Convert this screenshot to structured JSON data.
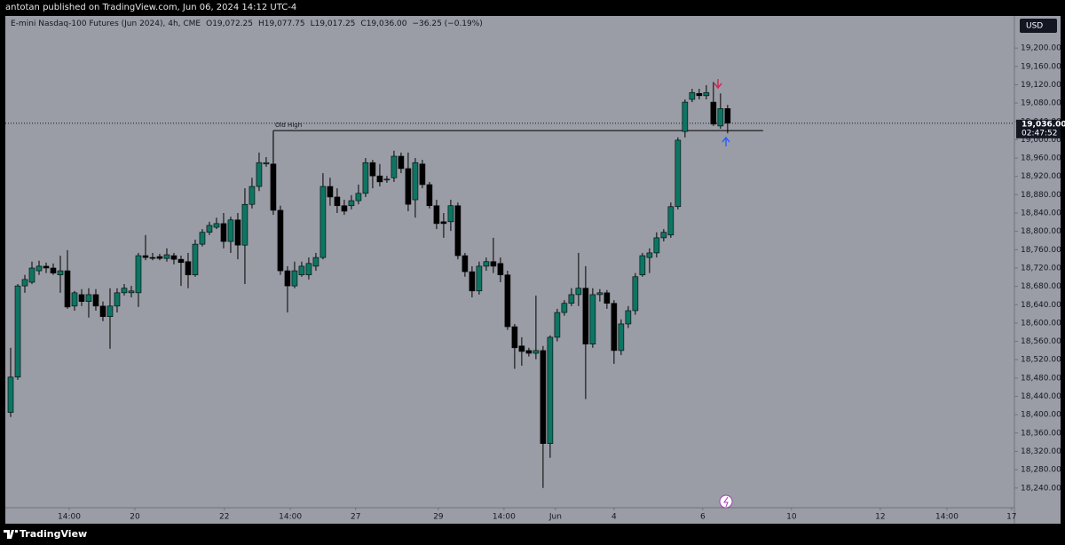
{
  "header": {
    "published": "antotan published on TradingView.com, Jun 06, 2024 14:12 UTC-4",
    "brand": "TradingView"
  },
  "chart_data": {
    "type": "candlestick",
    "symbol": "E-mini Nasdaq-100 Futures (Jun 2024), 4h, CME",
    "ohlc_legend": [
      "O19,072.25",
      "H19,077.75",
      "L19,017.25",
      "C19,036.00",
      "−36.25 (−0.19%)"
    ],
    "currency": "USD",
    "up_color": "#0d7563",
    "down_color": "#000000",
    "open": [
      18405,
      18482,
      18681,
      18689,
      18714,
      18724,
      18720,
      18705,
      18714,
      18637,
      18662,
      18647,
      18662,
      18637,
      18614,
      18637,
      18666,
      18666,
      18666,
      18747,
      18743,
      18745,
      18741,
      18747,
      18739,
      18734,
      18705,
      18772,
      18798,
      18809,
      18817,
      18778,
      18825,
      18770,
      18859,
      18898,
      18947,
      18947,
      18846,
      18714,
      18681,
      18705,
      18705,
      18724,
      18743,
      18898,
      18875,
      18856,
      18856,
      18867,
      18883,
      18950,
      18921,
      18912,
      18917,
      18964,
      18937,
      18869,
      18947,
      18902,
      18856,
      18821,
      18821,
      18856,
      18747,
      18712,
      18670,
      18724,
      18734,
      18730,
      18705,
      18592,
      18550,
      18540,
      18534,
      18540,
      18337,
      18569,
      18623,
      18643,
      18662,
      18676,
      18554,
      18662,
      18666,
      18643,
      18540,
      18598,
      18627,
      18705,
      18743,
      18753,
      18786,
      18792,
      18854,
      19018,
      19088,
      19101,
      19096,
      19082,
      19030,
      19068
    ],
    "high": [
      18546,
      18685,
      18705,
      18734,
      18736,
      18732,
      18730,
      18747,
      18759,
      18670,
      18674,
      18676,
      18674,
      18647,
      18676,
      18676,
      18685,
      18681,
      18753,
      18792,
      18753,
      18751,
      18763,
      18753,
      18747,
      18753,
      18782,
      18805,
      18821,
      18830,
      18840,
      18832,
      18840,
      18894,
      18917,
      18972,
      18962,
      19014,
      18856,
      18724,
      18734,
      18734,
      18743,
      18753,
      18927,
      18917,
      18894,
      18869,
      18879,
      18902,
      18960,
      18956,
      18947,
      18921,
      18976,
      18972,
      18972,
      18960,
      18956,
      18908,
      18869,
      18840,
      18869,
      18863,
      18753,
      18724,
      18734,
      18743,
      18786,
      18743,
      18714,
      18598,
      18569,
      18546,
      18660,
      18550,
      18573,
      18631,
      18650,
      18676,
      18753,
      18724,
      18676,
      18674,
      18672,
      18650,
      18608,
      18637,
      18709,
      18753,
      18763,
      18798,
      18805,
      18863,
      19005,
      19088,
      19111,
      19111,
      19119,
      19126,
      19101,
      19076
    ],
    "low": [
      18395,
      18476,
      18666,
      18685,
      18705,
      18709,
      18705,
      18666,
      18631,
      18627,
      18637,
      18612,
      18627,
      18604,
      18544,
      18623,
      18660,
      18656,
      18635,
      18737,
      18737,
      18737,
      18734,
      18728,
      18681,
      18676,
      18701,
      18767,
      18792,
      18805,
      18763,
      18753,
      18739,
      18685,
      18850,
      18888,
      18941,
      18836,
      18705,
      18623,
      18676,
      18701,
      18695,
      18714,
      18739,
      18856,
      18840,
      18836,
      18848,
      18859,
      18875,
      18894,
      18898,
      18906,
      18908,
      18927,
      18844,
      18830,
      18894,
      18850,
      18805,
      18786,
      18801,
      18739,
      18701,
      18656,
      18662,
      18714,
      18709,
      18689,
      18585,
      18500,
      18507,
      18527,
      18521,
      18240,
      18306,
      18560,
      18616,
      18637,
      18637,
      18434,
      18546,
      18647,
      18631,
      18511,
      18530,
      18589,
      18618,
      18701,
      18709,
      18743,
      18778,
      18786,
      18848,
      19005,
      19082,
      19088,
      19088,
      19030,
      19024,
      19014
    ],
    "close": [
      18482,
      18681,
      18695,
      18720,
      18724,
      18720,
      18709,
      18714,
      18635,
      18666,
      18647,
      18662,
      18637,
      18614,
      18637,
      18666,
      18676,
      18670,
      18747,
      18743,
      18743,
      18741,
      18749,
      18739,
      18732,
      18705,
      18772,
      18798,
      18813,
      18817,
      18778,
      18825,
      18770,
      18859,
      18898,
      18950,
      18950,
      18846,
      18714,
      18681,
      18714,
      18724,
      18730,
      18743,
      18898,
      18875,
      18856,
      18844,
      18867,
      18883,
      18950,
      18921,
      18908,
      18914,
      18964,
      18937,
      18859,
      18950,
      18902,
      18856,
      18817,
      18817,
      18856,
      18747,
      18712,
      18670,
      18724,
      18734,
      18724,
      18705,
      18592,
      18546,
      18538,
      18534,
      18540,
      18337,
      18569,
      18623,
      18643,
      18662,
      18676,
      18554,
      18662,
      18666,
      18643,
      18540,
      18598,
      18627,
      18701,
      18747,
      18753,
      18786,
      18798,
      18854,
      18999,
      19082,
      19103,
      19096,
      19103,
      19034,
      19068,
      19036
    ],
    "level": {
      "label": "Old High",
      "value": 19020,
      "start": 37,
      "end": 106
    },
    "last_price": {
      "value": 19036,
      "label": "19,036.00"
    },
    "countdown": "02:47:52",
    "xlim": [
      -0.75,
      141.4
    ],
    "xticks": [
      {
        "value": 8.25,
        "label": "14:00"
      },
      {
        "value": 17.5,
        "label": "20"
      },
      {
        "value": 30.1,
        "label": "22"
      },
      {
        "value": 39.4,
        "label": "14:00"
      },
      {
        "value": 48.6,
        "label": "27"
      },
      {
        "value": 60.25,
        "label": "29"
      },
      {
        "value": 69.5,
        "label": "14:00"
      },
      {
        "value": 76.75,
        "label": "Jun"
      },
      {
        "value": 85,
        "label": "4"
      },
      {
        "value": 97.5,
        "label": "6"
      },
      {
        "value": 110,
        "label": "10"
      },
      {
        "value": 122.5,
        "label": "12"
      },
      {
        "value": 131.9,
        "label": "14:00"
      },
      {
        "value": 141,
        "label": "17"
      }
    ],
    "ylim": [
      18197,
      19270
    ],
    "yticks": [
      {
        "value": 18240,
        "label": "18,240.00"
      },
      {
        "value": 18280,
        "label": "18,280.00"
      },
      {
        "value": 18320,
        "label": "18,320.00"
      },
      {
        "value": 18360,
        "label": "18,360.00"
      },
      {
        "value": 18400,
        "label": "18,400.00"
      },
      {
        "value": 18440,
        "label": "18,440.00"
      },
      {
        "value": 18480,
        "label": "18,480.00"
      },
      {
        "value": 18520,
        "label": "18,520.00"
      },
      {
        "value": 18560,
        "label": "18,560.00"
      },
      {
        "value": 18600,
        "label": "18,600.00"
      },
      {
        "value": 18640,
        "label": "18,640.00"
      },
      {
        "value": 18680,
        "label": "18,680.00"
      },
      {
        "value": 18720,
        "label": "18,720.00"
      },
      {
        "value": 18760,
        "label": "18,760.00"
      },
      {
        "value": 18800,
        "label": "18,800.00"
      },
      {
        "value": 18840,
        "label": "18,840.00"
      },
      {
        "value": 18880,
        "label": "18,880.00"
      },
      {
        "value": 18920,
        "label": "18,920.00"
      },
      {
        "value": 18960,
        "label": "18,960.00"
      },
      {
        "value": 19000,
        "label": "19,000.00"
      },
      {
        "value": 19040,
        "label": "19,040.00"
      },
      {
        "value": 19080,
        "label": "19,080.00"
      },
      {
        "value": 19120,
        "label": "19,120.00"
      },
      {
        "value": 19160,
        "label": "19,160.00"
      },
      {
        "value": 19200,
        "label": "19,200.00"
      }
    ],
    "grid": false
  }
}
